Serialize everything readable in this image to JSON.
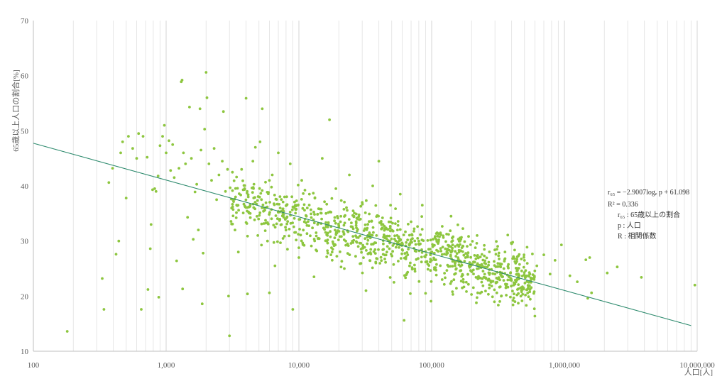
{
  "chart_data": {
    "type": "scatter",
    "xscale": "log",
    "xlim": [
      100,
      10000000
    ],
    "ylim": [
      10,
      70
    ],
    "xlabel": "人口[人]",
    "ylabel": "65歳以上人口の割合[%]",
    "x_ticks": [
      100,
      1000,
      10000,
      100000,
      1000000,
      10000000
    ],
    "x_tick_labels": [
      "100",
      "1,000",
      "10,000",
      "100,000",
      "1,000,000",
      "10,000,000"
    ],
    "y_ticks": [
      10,
      20,
      30,
      40,
      50,
      60,
      70
    ],
    "y_tick_labels": [
      "10",
      "20",
      "30",
      "40",
      "50",
      "60",
      "70"
    ],
    "point_color": "#8dc63f",
    "trend_color": "#2e8b6e",
    "grid": "vertical minor and major log gridlines",
    "trendline": {
      "slope": -2.9007,
      "intercept": 61.098,
      "form": "y = slope·ln(x) + intercept",
      "x_range": [
        100,
        9000000
      ]
    },
    "points": [
      [
        180,
        13.6
      ],
      [
        330,
        23.2
      ],
      [
        340,
        17.6
      ],
      [
        370,
        40.6
      ],
      [
        395,
        43.2
      ],
      [
        420,
        27.6
      ],
      [
        440,
        30
      ],
      [
        455,
        46
      ],
      [
        470,
        48
      ],
      [
        500,
        37.8
      ],
      [
        520,
        49
      ],
      [
        560,
        46.8
      ],
      [
        600,
        45
      ],
      [
        620,
        49.5
      ],
      [
        650,
        17.6
      ],
      [
        670,
        49
      ],
      [
        720,
        45.2
      ],
      [
        730,
        21.2
      ],
      [
        760,
        28.6
      ],
      [
        770,
        33
      ],
      [
        790,
        39.3
      ],
      [
        820,
        39.5
      ],
      [
        840,
        39
      ],
      [
        870,
        41.8
      ],
      [
        880,
        19.8
      ],
      [
        900,
        47.3
      ],
      [
        940,
        49
      ],
      [
        970,
        51
      ],
      [
        1000,
        46
      ],
      [
        1050,
        48.2
      ],
      [
        1080,
        42.8
      ],
      [
        1120,
        47.5
      ],
      [
        1150,
        41.5
      ],
      [
        1200,
        26.4
      ],
      [
        1250,
        43.2
      ],
      [
        1300,
        58.9
      ],
      [
        1320,
        59.2
      ],
      [
        1330,
        21.3
      ],
      [
        1350,
        46
      ],
      [
        1400,
        44
      ],
      [
        1450,
        34.3
      ],
      [
        1500,
        54.3
      ],
      [
        1550,
        45
      ],
      [
        1600,
        30.3
      ],
      [
        1650,
        38.9
      ],
      [
        1700,
        40.3
      ],
      [
        1750,
        32
      ],
      [
        1800,
        54
      ],
      [
        1830,
        46.5
      ],
      [
        1870,
        18.6
      ],
      [
        1900,
        27.8
      ],
      [
        1950,
        50.3
      ],
      [
        2000,
        60.6
      ],
      [
        2030,
        56
      ],
      [
        2100,
        44
      ],
      [
        2200,
        41
      ],
      [
        2300,
        46.8
      ],
      [
        2400,
        37.5
      ],
      [
        2500,
        42
      ],
      [
        2650,
        44.5
      ],
      [
        2700,
        53.5
      ],
      [
        2800,
        39
      ],
      [
        2900,
        43
      ],
      [
        2950,
        20
      ],
      [
        3000,
        12.8
      ],
      [
        3100,
        37.6
      ],
      [
        3300,
        32
      ],
      [
        3500,
        28
      ],
      [
        3700,
        43
      ],
      [
        3900,
        39.5
      ],
      [
        4000,
        55.9
      ],
      [
        4100,
        20.4
      ],
      [
        4300,
        35
      ],
      [
        4500,
        44.5
      ],
      [
        4700,
        47
      ],
      [
        4900,
        31
      ],
      [
        5100,
        48
      ],
      [
        5300,
        54
      ],
      [
        5500,
        36
      ],
      [
        5800,
        30
      ],
      [
        6000,
        20.6
      ],
      [
        6300,
        42
      ],
      [
        6600,
        25.5
      ],
      [
        7000,
        46
      ],
      [
        7400,
        33
      ],
      [
        7800,
        38
      ],
      [
        8200,
        28.5
      ],
      [
        8600,
        44
      ],
      [
        9000,
        17.6
      ],
      [
        9500,
        36.5
      ],
      [
        10000,
        27
      ],
      [
        10500,
        41
      ],
      [
        11000,
        33.5
      ],
      [
        12000,
        38.5
      ],
      [
        13000,
        23.5
      ],
      [
        14000,
        30.5
      ],
      [
        15000,
        45
      ],
      [
        16000,
        35
      ],
      [
        17000,
        52
      ],
      [
        18000,
        28.5
      ],
      [
        19000,
        39.5
      ],
      [
        20000,
        32.5
      ],
      [
        22000,
        25
      ],
      [
        24000,
        42
      ],
      [
        26000,
        34.5
      ],
      [
        28000,
        29
      ],
      [
        30000,
        37
      ],
      [
        32000,
        21
      ],
      [
        34000,
        31.5
      ],
      [
        36000,
        40
      ],
      [
        38000,
        26
      ],
      [
        40000,
        44.5
      ],
      [
        43000,
        33
      ],
      [
        46000,
        28
      ],
      [
        49000,
        36.5
      ],
      [
        52000,
        22.5
      ],
      [
        55000,
        31
      ],
      [
        58000,
        38.5
      ],
      [
        62000,
        15.6
      ],
      [
        66000,
        27.5
      ],
      [
        70000,
        33.5
      ],
      [
        75000,
        24.5
      ],
      [
        80000,
        30
      ],
      [
        85000,
        36.5
      ],
      [
        90000,
        20.5
      ],
      [
        95000,
        28.5
      ],
      [
        100000,
        26.5
      ],
      [
        110000,
        31.5
      ],
      [
        120000,
        23
      ],
      [
        130000,
        28
      ],
      [
        140000,
        34.5
      ],
      [
        150000,
        25.5
      ],
      [
        160000,
        29
      ],
      [
        170000,
        21.5
      ],
      [
        180000,
        27
      ],
      [
        200000,
        24.5
      ],
      [
        220000,
        31
      ],
      [
        250000,
        26
      ],
      [
        280000,
        22.5
      ],
      [
        310000,
        28.5
      ],
      [
        350000,
        25
      ],
      [
        400000,
        29.5
      ],
      [
        450000,
        23.5
      ],
      [
        500000,
        26.5
      ],
      [
        560000,
        22.5
      ],
      [
        620000,
        25.5
      ],
      [
        700000,
        27.5
      ],
      [
        780000,
        24
      ],
      [
        850000,
        26.5
      ],
      [
        950000,
        29.3
      ],
      [
        1100000,
        23.7
      ],
      [
        1250000,
        22.6
      ],
      [
        1450000,
        26.6
      ],
      [
        1500000,
        19.6
      ],
      [
        1550000,
        27
      ],
      [
        1600000,
        20.6
      ],
      [
        2100000,
        24.2
      ],
      [
        2500000,
        25.3
      ],
      [
        3800000,
        23.4
      ],
      [
        9600000,
        22
      ]
    ],
    "dense_cloud": {
      "x_range": [
        3000,
        600000
      ],
      "y_range": [
        15,
        47
      ]
    }
  },
  "annotation": {
    "eq_line1": "r₆₅ = −2.9007logₑ p + 61.098",
    "eq_line2": "R² = 0.336",
    "eq_line3": "r₆₅ : 65歳以上の割合",
    "eq_line4": "p : 人口",
    "eq_line5": "R : 相関係数"
  }
}
